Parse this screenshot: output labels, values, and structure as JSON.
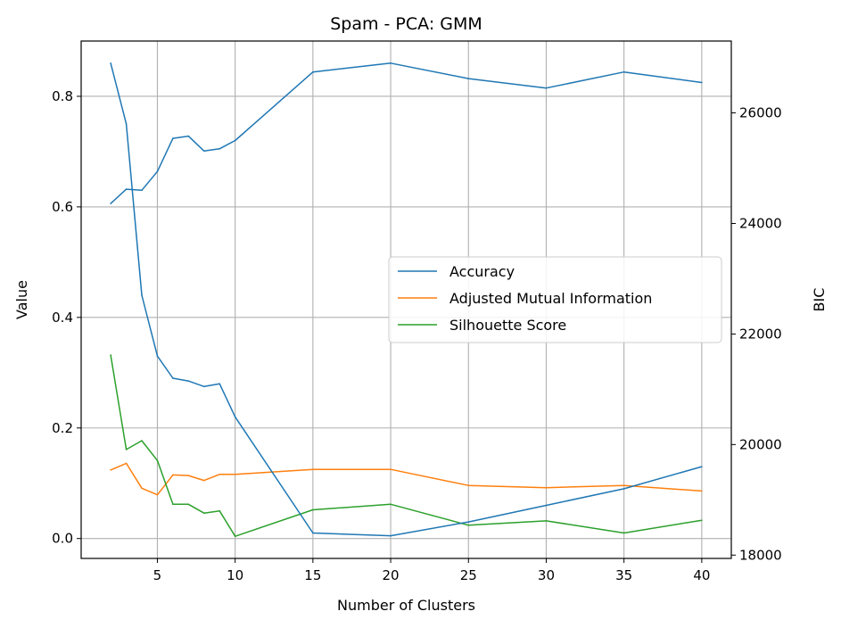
{
  "chart_data": {
    "type": "line",
    "title": "Spam - PCA: GMM",
    "xlabel": "Number of Clusters",
    "ylabel": "Value",
    "y2label": "BIC",
    "xlim": [
      0.1,
      41.9
    ],
    "ylim": [
      -0.036,
      0.9
    ],
    "y2lim": [
      17940,
      27300
    ],
    "x_ticks": [
      5,
      10,
      15,
      20,
      25,
      30,
      35,
      40
    ],
    "y_ticks": [
      0.0,
      0.2,
      0.4,
      0.6,
      0.8
    ],
    "y_tick_labels": [
      "0.0",
      "0.2",
      "0.4",
      "0.6",
      "0.8"
    ],
    "y2_ticks": [
      18000,
      20000,
      22000,
      24000,
      26000
    ],
    "y2_tick_labels": [
      "18000",
      "20000",
      "22000",
      "24000",
      "26000"
    ],
    "grid": true,
    "legend_position": "center-right",
    "x": [
      2,
      3,
      4,
      5,
      6,
      7,
      8,
      9,
      10,
      15,
      20,
      25,
      30,
      35,
      40
    ],
    "series": [
      {
        "name": "Accuracy",
        "color": "#1f77b4",
        "axis": "left",
        "values": [
          0.606,
          0.632,
          0.63,
          0.664,
          0.724,
          0.728,
          0.701,
          0.705,
          0.72,
          0.844,
          0.86,
          0.832,
          0.815,
          0.844,
          0.825
        ]
      },
      {
        "name": "Adjusted Mutual Information",
        "color": "#ff7f0e",
        "axis": "left",
        "values": [
          0.124,
          0.136,
          0.091,
          0.079,
          0.115,
          0.114,
          0.105,
          0.116,
          0.116,
          0.125,
          0.125,
          0.096,
          0.092,
          0.096,
          0.086
        ]
      },
      {
        "name": "Silhouette Score",
        "color": "#2ca02c",
        "axis": "left",
        "values": [
          0.332,
          0.161,
          0.177,
          0.141,
          0.062,
          0.062,
          0.046,
          0.05,
          0.004,
          0.052,
          0.062,
          0.024,
          0.032,
          0.01,
          0.033
        ]
      },
      {
        "color": "#1f77b4",
        "axis": "right",
        "values": [
          26900,
          25800,
          22700,
          21600,
          21200,
          21150,
          21050,
          21100,
          20500,
          18400,
          18350,
          18600,
          18900,
          19200,
          19600
        ]
      }
    ]
  }
}
